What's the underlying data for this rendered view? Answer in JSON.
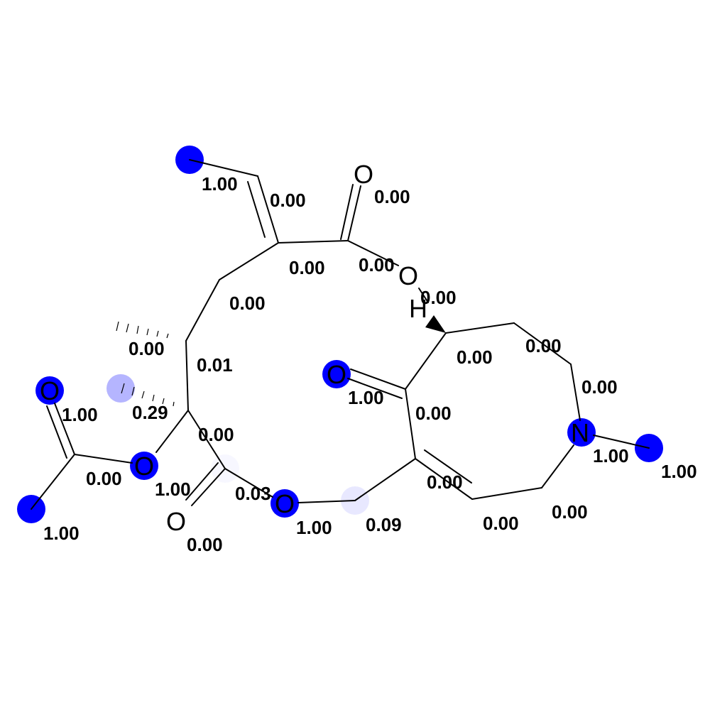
{
  "highlight_color": "#0000ff",
  "atom_labels": {
    "O_top_carbonyl": "O",
    "O_ring_ester": "O",
    "H_stereo": "H",
    "O_ketone": "O",
    "O_acetyl_carbonyl": "O",
    "O_acetyl_ester": "O",
    "O_lactone_carbonyl": "O",
    "O_lactone_ester": "O",
    "N_amine": "N"
  },
  "weights": {
    "w_vinyl_methyl": "1.00",
    "w_vinyl_ch": "0.00",
    "w_top_carbonyl_o": "0.00",
    "w_c_alkene_ring": "0.00",
    "w_c_carbonyl": "0.00",
    "w_o_ring_ester": "0.00",
    "w_ch2": "0.00",
    "w_c_methyl_stereo": "0.00",
    "w_c_ring": "0.01",
    "w_c_pyrrolizidine_top": "0.00",
    "w_c_ring_right_1": "0.00",
    "w_c_ring_right_2": "0.00",
    "w_ketone_o": "1.00",
    "w_c_ketone": "0.00",
    "w_acetyl_o": "1.00",
    "w_c_quat_methyl": "0.29",
    "w_c_quat": "0.00",
    "w_c_acetyl": "0.00",
    "w_n": "1.00",
    "w_n_methyl": "1.00",
    "w_o_acetyl_ester": "1.00",
    "w_c_lactone": "0.03",
    "w_c_alkene_low": "0.00",
    "w_o_lactone": "1.00",
    "w_ch2_lactone": "0.09",
    "w_c_ring_bottom_right": "0.00",
    "w_c_ring_bottom": "0.00",
    "w_acetyl_methyl": "1.00",
    "w_lactone_o": "0.00"
  }
}
